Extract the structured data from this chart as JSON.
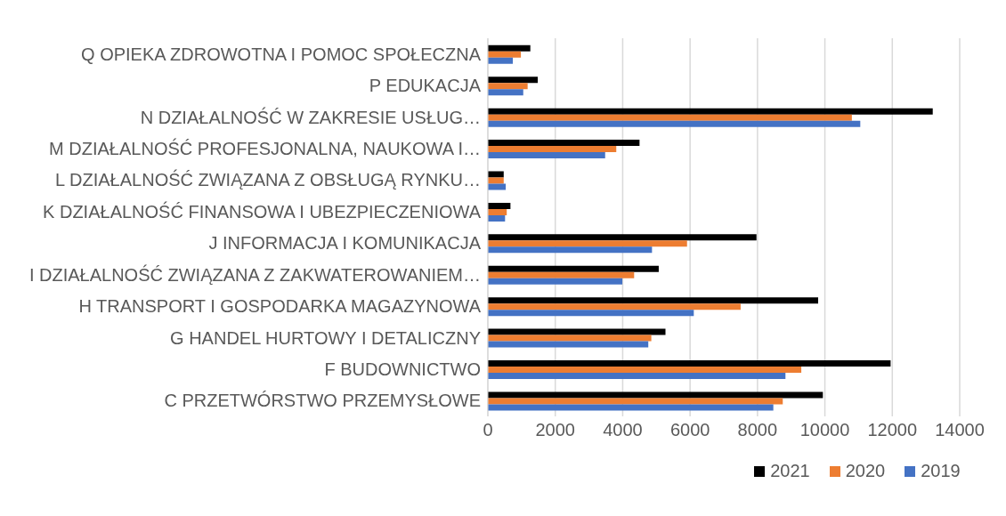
{
  "chart_data": {
    "type": "bar",
    "orientation": "horizontal",
    "categories": [
      "Q OPIEKA ZDROWOTNA I POMOC SPOŁECZNA",
      "P EDUKACJA",
      "N DZIAŁALNOŚĆ W ZAKRESIE USŁUG…",
      "M DZIAŁALNOŚĆ PROFESJONALNA, NAUKOWA I…",
      "L DZIAŁALNOŚĆ ZWIĄZANA Z OBSŁUGĄ RYNKU…",
      "K DZIAŁALNOŚĆ FINANSOWA I UBEZPIECZENIOWA",
      "J INFORMACJA I KOMUNIKACJA",
      "I DZIAŁALNOŚĆ ZWIĄZANA Z ZAKWATEROWANIEM…",
      "H TRANSPORT I GOSPODARKA MAGAZYNOWA",
      "G HANDEL HURTOWY I DETALICZNY",
      "F BUDOWNICTWO",
      "C PRZETWÓRSTWO PRZEMYSŁOWE"
    ],
    "series": [
      {
        "name": "2021",
        "color": "#000000",
        "values": [
          1260,
          1480,
          13200,
          4500,
          470,
          670,
          7970,
          5070,
          9800,
          5270,
          11950,
          9940
        ]
      },
      {
        "name": "2020",
        "color": "#ed7d31",
        "values": [
          980,
          1180,
          10800,
          3810,
          470,
          560,
          5910,
          4340,
          7500,
          4850,
          9300,
          8750
        ]
      },
      {
        "name": "2019",
        "color": "#4472c4",
        "values": [
          740,
          1050,
          11050,
          3480,
          530,
          510,
          4870,
          3990,
          6110,
          4760,
          8830,
          8470
        ]
      }
    ],
    "xlim": [
      0,
      14000
    ],
    "xticks": [
      0,
      2000,
      4000,
      6000,
      8000,
      10000,
      12000,
      14000
    ],
    "grid": "x",
    "legend": "bottom"
  }
}
